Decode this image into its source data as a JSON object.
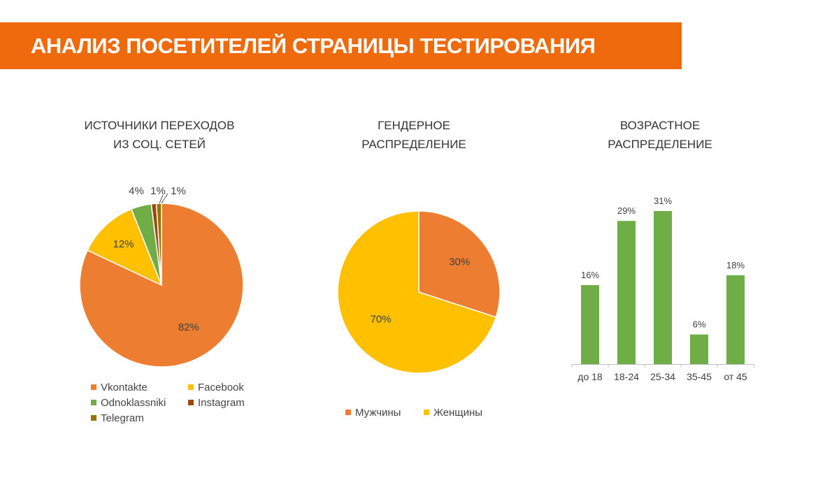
{
  "header": {
    "title": "АНАЛИЗ ПОСЕТИТЕЛЕЙ СТРАНИЦЫ ТЕСТИРОВАНИЯ"
  },
  "colors": {
    "orange": "#ed7d31",
    "yellow": "#ffc000",
    "green": "#70ad47",
    "brown": "#9e480e",
    "olive": "#997300",
    "banner": "#ee6a0d"
  },
  "chart_data": [
    {
      "type": "pie",
      "title_lines": [
        "ИСТОЧНИКИ ПЕРЕХОДОВ",
        "ИЗ СОЦ. СЕТЕЙ"
      ],
      "labels": [
        "Vkontakte",
        "Facebook",
        "Odnoklassniki",
        "Instagram",
        "Telegram"
      ],
      "values": [
        82,
        12,
        4,
        1,
        1
      ],
      "data_labels": [
        "82%",
        "12%",
        "4%",
        "1%",
        "1%"
      ],
      "legend": "bottom"
    },
    {
      "type": "pie",
      "title_lines": [
        "ГЕНДЕРНОЕ",
        "РАСПРЕДЕЛЕНИЕ"
      ],
      "labels": [
        "Мужчины",
        "Женщины"
      ],
      "values": [
        30,
        70
      ],
      "data_labels": [
        "30%",
        "70%"
      ],
      "legend": "bottom"
    },
    {
      "type": "bar",
      "title_lines": [
        "ВОЗРАСТНОЕ",
        "РАСПРЕДЕЛЕНИЕ"
      ],
      "categories": [
        "до 18",
        "18-24",
        "25-34",
        "35-45",
        "от 45"
      ],
      "values": [
        16,
        29,
        31,
        6,
        18
      ],
      "data_labels": [
        "16%",
        "29%",
        "31%",
        "6%",
        "18%"
      ],
      "ylim": [
        0,
        31
      ],
      "grid": false
    }
  ]
}
